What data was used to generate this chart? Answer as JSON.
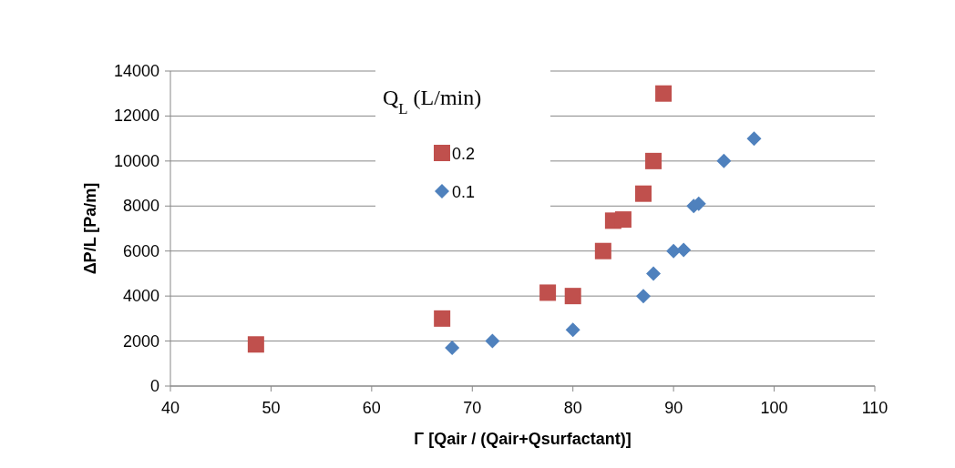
{
  "chart_data": {
    "type": "scatter",
    "xlabel": "Γ [Qair / (Qair+Qsurfactant)]",
    "ylabel": "ΔP/L [Pa/m]",
    "legend_title": "Q$_{L}$ (L/min)",
    "legend": "top",
    "grid": "y",
    "xlim": [
      40,
      110
    ],
    "xticks": [
      40,
      50,
      60,
      70,
      80,
      90,
      100,
      110
    ],
    "ylim": [
      0,
      14000
    ],
    "yticks": [
      0,
      2000,
      4000,
      6000,
      8000,
      10000,
      12000,
      14000
    ],
    "series": [
      {
        "name": "0.2",
        "color": "#c0504d",
        "marker": "square",
        "x": [
          48.5,
          67,
          77.5,
          80,
          83,
          84,
          85,
          87,
          88,
          89
        ],
        "values": [
          1850,
          3000,
          4150,
          4000,
          6000,
          7350,
          7400,
          8550,
          10000,
          13000
        ]
      },
      {
        "name": "0.1",
        "color": "#4f81bd",
        "marker": "diamond",
        "x": [
          68,
          72,
          80,
          87,
          88,
          90,
          91,
          92,
          92.5,
          95,
          98
        ],
        "values": [
          1700,
          2000,
          2500,
          4000,
          5000,
          6000,
          6050,
          8000,
          8100,
          10000,
          11000
        ]
      }
    ]
  }
}
